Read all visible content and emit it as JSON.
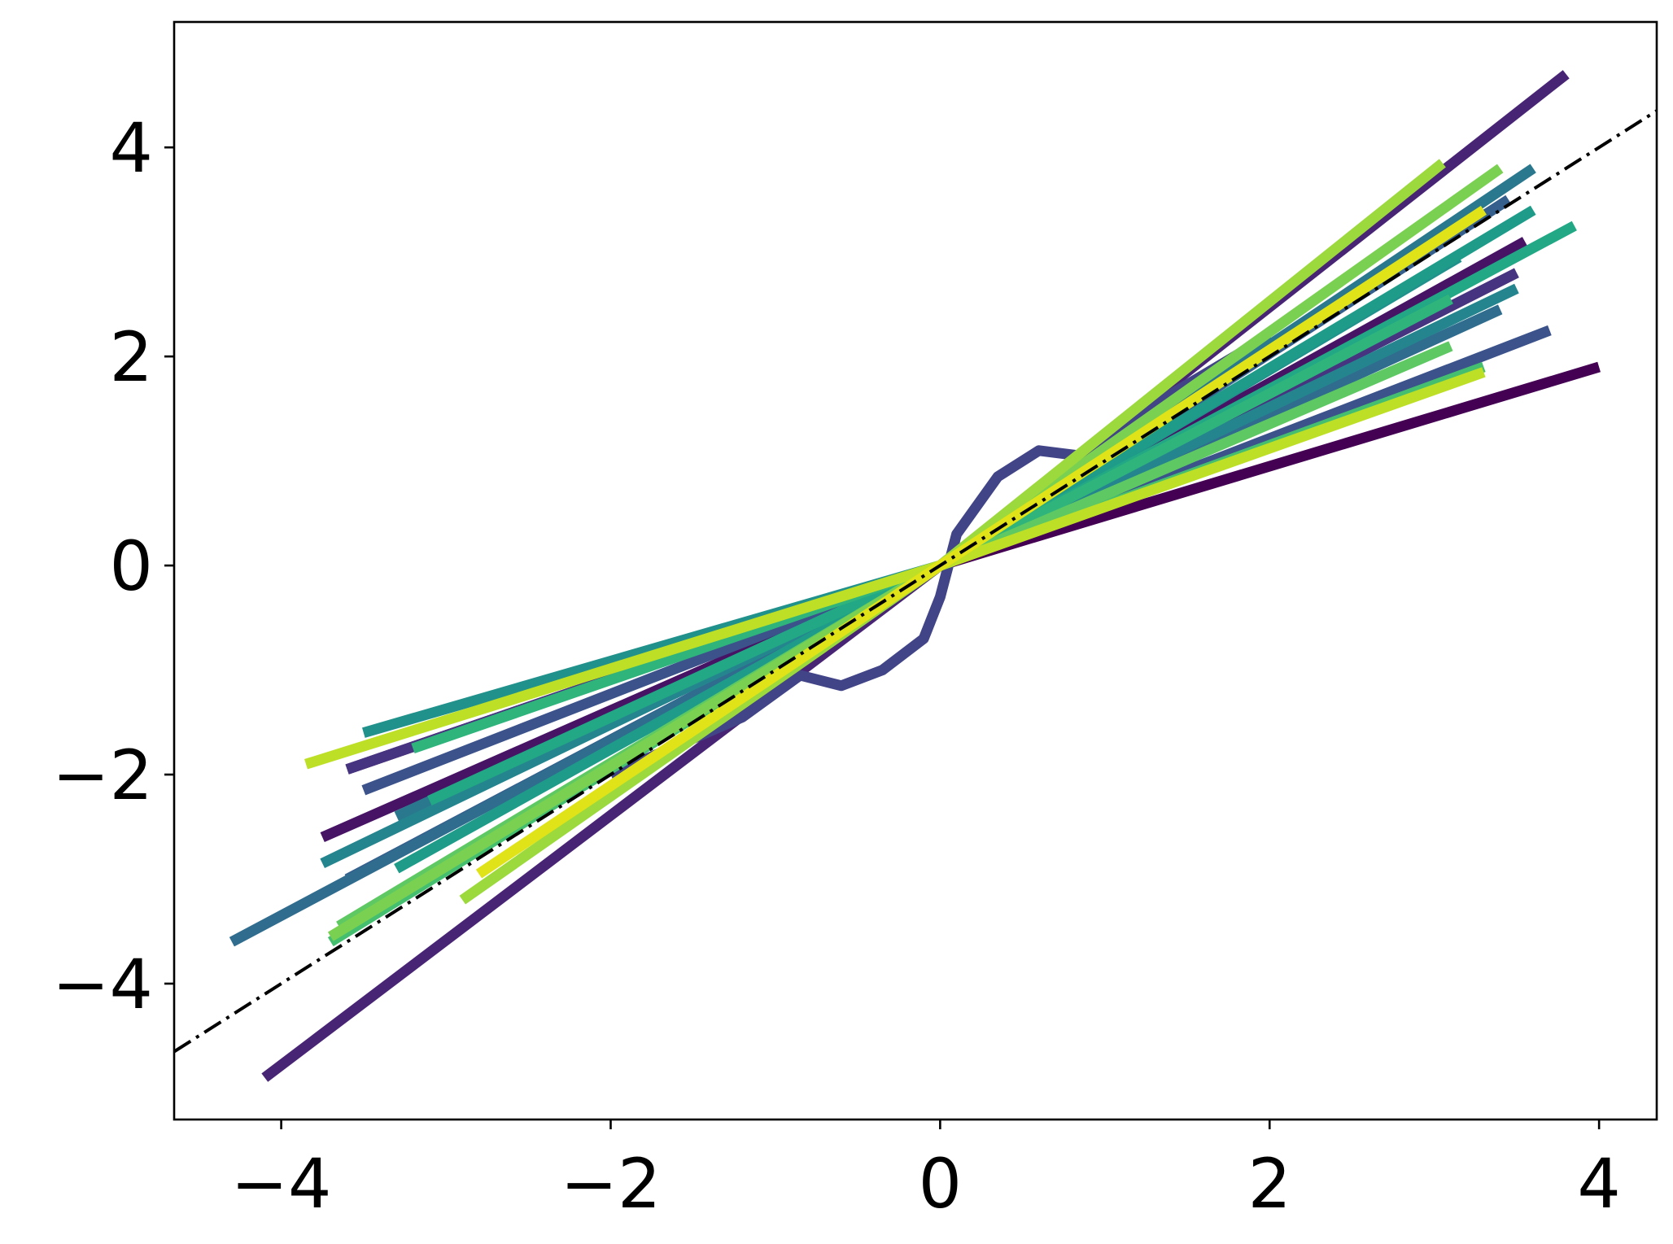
{
  "chart_data": {
    "type": "line",
    "title": "",
    "xlabel": "",
    "ylabel": "",
    "xlim": [
      -4.65,
      4.35
    ],
    "ylim": [
      -5.3,
      5.2
    ],
    "grid": false,
    "legend": "none",
    "x_ticks": [
      -4,
      -2,
      0,
      2,
      4
    ],
    "y_ticks": [
      -4,
      -2,
      0,
      2,
      4
    ],
    "x_tick_labels": [
      "−4",
      "−2",
      "0",
      "2",
      "4"
    ],
    "y_tick_labels": [
      "−4",
      "−2",
      "0",
      "2",
      "4"
    ],
    "reference_line": {
      "style": "dash-dot",
      "color": "#000000",
      "points": [
        [
          -4.65,
          -4.65
        ],
        [
          4.35,
          4.35
        ]
      ]
    },
    "series": [
      {
        "color": "#440154",
        "points": [
          [
            -3.6,
            -1.95
          ],
          [
            0,
            0
          ],
          [
            4.0,
            1.9
          ]
        ]
      },
      {
        "color": "#471365",
        "points": [
          [
            -3.75,
            -2.6
          ],
          [
            0,
            0
          ],
          [
            3.55,
            3.1
          ]
        ]
      },
      {
        "color": "#482475",
        "points": [
          [
            -4.1,
            -4.9
          ],
          [
            0,
            0
          ],
          [
            3.8,
            4.7
          ]
        ]
      },
      {
        "color": "#463480",
        "points": [
          [
            -3.6,
            -1.95
          ],
          [
            0,
            0
          ],
          [
            3.5,
            2.8
          ]
        ]
      },
      {
        "color": "#414487",
        "points": [
          [
            -2.0,
            -2.0
          ],
          [
            -1.2,
            -1.45
          ],
          [
            -0.85,
            -1.05
          ],
          [
            -0.6,
            -1.15
          ],
          [
            -0.35,
            -1.0
          ],
          [
            -0.1,
            -0.7
          ],
          [
            0.0,
            -0.3
          ],
          [
            0.1,
            0.3
          ],
          [
            0.35,
            0.85
          ],
          [
            0.6,
            1.1
          ],
          [
            0.85,
            1.05
          ],
          [
            1.2,
            1.45
          ],
          [
            2.0,
            2.2
          ]
        ]
      },
      {
        "color": "#3b528b",
        "points": [
          [
            -3.5,
            -2.15
          ],
          [
            0,
            0
          ],
          [
            3.7,
            2.25
          ]
        ]
      },
      {
        "color": "#355f8d",
        "points": [
          [
            -3.6,
            -3.0
          ],
          [
            0,
            0
          ],
          [
            3.45,
            3.5
          ]
        ]
      },
      {
        "color": "#2f6c8e",
        "points": [
          [
            -4.3,
            -3.6
          ],
          [
            0,
            0
          ],
          [
            3.4,
            2.45
          ]
        ]
      },
      {
        "color": "#2a788e",
        "points": [
          [
            -3.3,
            -2.4
          ],
          [
            0,
            0
          ],
          [
            3.6,
            3.8
          ]
        ]
      },
      {
        "color": "#25858e",
        "points": [
          [
            -3.75,
            -2.85
          ],
          [
            0,
            0
          ],
          [
            3.5,
            2.65
          ]
        ]
      },
      {
        "color": "#21918c",
        "points": [
          [
            -3.5,
            -1.6
          ],
          [
            0,
            0
          ],
          [
            3.15,
            2.95
          ]
        ]
      },
      {
        "color": "#1e9c89",
        "points": [
          [
            -3.3,
            -2.9
          ],
          [
            0,
            0
          ],
          [
            3.6,
            3.4
          ]
        ]
      },
      {
        "color": "#22a884",
        "points": [
          [
            -3.1,
            -2.25
          ],
          [
            0,
            0
          ],
          [
            3.85,
            3.25
          ]
        ]
      },
      {
        "color": "#2fb47c",
        "points": [
          [
            -3.2,
            -1.75
          ],
          [
            0,
            0
          ],
          [
            3.1,
            2.55
          ]
        ]
      },
      {
        "color": "#44bf70",
        "points": [
          [
            -3.7,
            -3.6
          ],
          [
            0,
            0
          ],
          [
            3.3,
            1.9
          ]
        ]
      },
      {
        "color": "#5ec962",
        "points": [
          [
            -3.65,
            -3.45
          ],
          [
            0,
            0
          ],
          [
            3.1,
            2.1
          ]
        ]
      },
      {
        "color": "#7ad151",
        "points": [
          [
            -3.7,
            -3.55
          ],
          [
            0,
            0
          ],
          [
            3.4,
            3.8
          ]
        ]
      },
      {
        "color": "#9bd93c",
        "points": [
          [
            -2.9,
            -3.2
          ],
          [
            0,
            0
          ],
          [
            3.05,
            3.85
          ]
        ]
      },
      {
        "color": "#bddf26",
        "points": [
          [
            -3.85,
            -1.9
          ],
          [
            0,
            0
          ],
          [
            3.3,
            1.85
          ]
        ]
      },
      {
        "color": "#dfe318",
        "points": [
          [
            -2.8,
            -2.95
          ],
          [
            0,
            0
          ],
          [
            3.3,
            3.4
          ]
        ]
      }
    ]
  }
}
